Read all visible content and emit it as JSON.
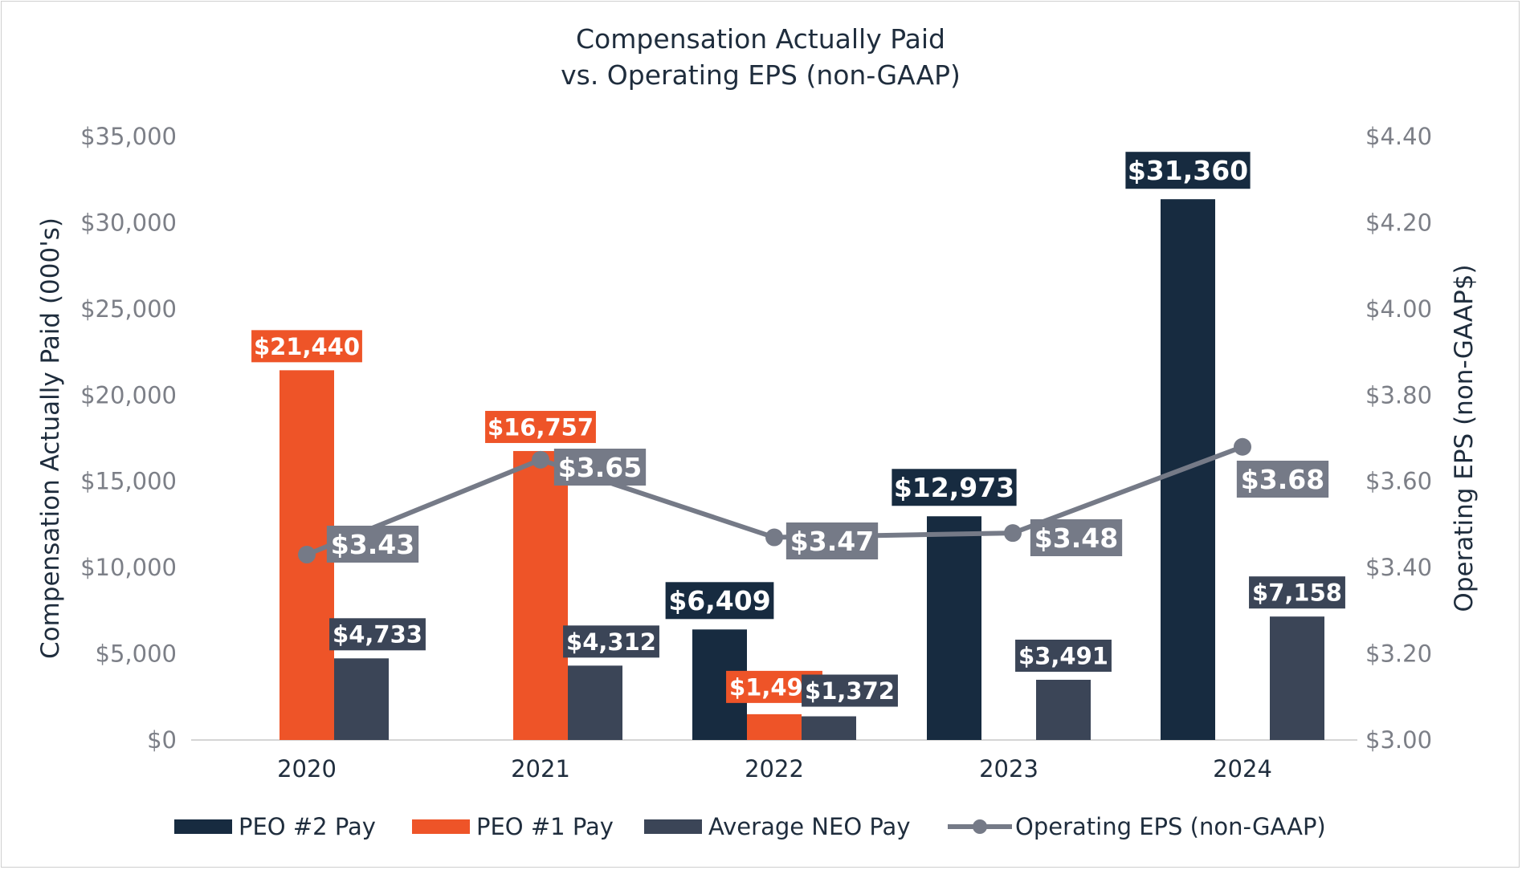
{
  "chart_data": {
    "type": "bar",
    "title_lines": [
      "Compensation Actually Paid",
      "vs. Operating EPS (non-GAAP)"
    ],
    "ylabel": "Compensation Actually Paid (000's)",
    "y2label": "Operating EPS (non-GAAP$)",
    "categories": [
      "2020",
      "2021",
      "2022",
      "2023",
      "2024"
    ],
    "ylim": [
      0,
      35000
    ],
    "y2lim": [
      3.0,
      4.4
    ],
    "yticks": [
      "$0",
      "$5,000",
      "$10,000",
      "$15,000",
      "$20,000",
      "$25,000",
      "$30,000",
      "$35,000"
    ],
    "y2ticks": [
      "$3.00",
      "$3.20",
      "$3.40",
      "$3.60",
      "$3.80",
      "$4.00",
      "$4.20",
      "$4.40"
    ],
    "series": [
      {
        "name": "PEO #2 Pay",
        "type": "bar",
        "color": "#172b40",
        "values": [
          null,
          null,
          6409,
          12973,
          31360
        ],
        "labels": [
          "",
          "",
          "$6,409",
          "$12,973",
          "$31,360"
        ]
      },
      {
        "name": "PEO #1 Pay",
        "type": "bar",
        "color": "#ee5428",
        "values": [
          21440,
          16757,
          1495,
          null,
          null
        ],
        "labels": [
          "$21,440",
          "$16,757",
          "$1,495",
          "",
          ""
        ]
      },
      {
        "name": "Average NEO Pay",
        "type": "bar",
        "color": "#3b4557",
        "values": [
          4733,
          4312,
          1372,
          3491,
          7158
        ],
        "labels": [
          "$4,733",
          "$4,312",
          "$1,372",
          "$3,491",
          "$7,158"
        ]
      },
      {
        "name": "Operating EPS (non-GAAP)",
        "type": "line",
        "axis": "right",
        "color": "#757a87",
        "values": [
          3.43,
          3.65,
          3.47,
          3.48,
          3.68
        ],
        "labels": [
          "$3.43",
          "$3.65",
          "$3.47",
          "$3.48",
          "$3.68"
        ]
      }
    ],
    "legend_position": "bottom",
    "grid": false
  }
}
